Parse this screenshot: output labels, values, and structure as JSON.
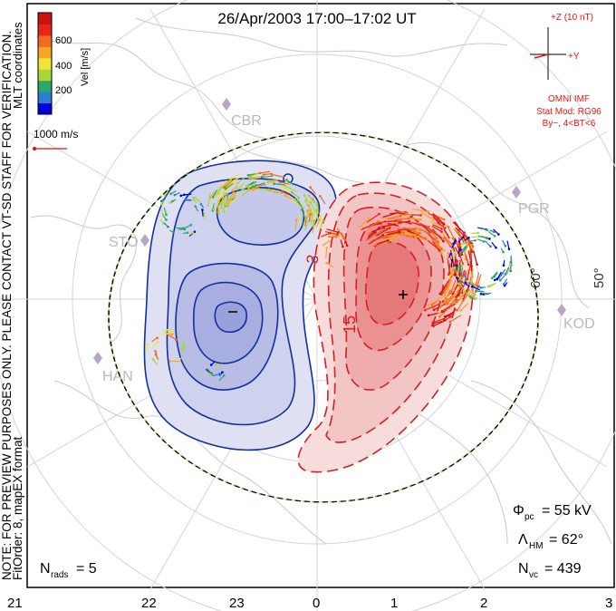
{
  "title": "26/Apr/2003 17:00–17:02 UT",
  "side_note": "NOTE: FOR PREVIEW PURPOSES ONLY. PLEASE CONTACT VT-SD STAFF FOR VERIFICATION.",
  "fit_order": "FitOrder: 8, mapEX format",
  "coord_label": "MLT coordinates",
  "colorbar": {
    "label": "Vel [m/s]",
    "ticks": [
      "600",
      "400",
      "200"
    ],
    "colors": [
      "#0000dd",
      "#2b7bd8",
      "#2aa76a",
      "#a8d838",
      "#f3e23a",
      "#f5a623",
      "#ef6b1f",
      "#e8251b",
      "#cc1111"
    ]
  },
  "scale": {
    "label": "1000 m/s",
    "color": "#d11"
  },
  "imf": {
    "z_label": "+Z (10 nT)",
    "y_label": "+Y",
    "source": "OMNI IMF",
    "model_line1": "Stat Mod: RG96",
    "model_line2": "By−, 4<BT<6",
    "color": "#e11"
  },
  "stations": [
    "CBR",
    "STO",
    "PGR",
    "KOD",
    "HAN"
  ],
  "lat_labels": [
    "60°",
    "50°"
  ],
  "contour_labels": [
    "3",
    "15"
  ],
  "mlt_ticks": [
    "21",
    "22",
    "23",
    "0",
    "1",
    "2",
    "3"
  ],
  "stats": {
    "phi_pc": {
      "sym": "Φ",
      "sub": "pc",
      "value": "= 55 kV"
    },
    "lambda_hm": {
      "sym": "Λ",
      "sub": "HM",
      "value": "= 62°"
    },
    "n_vc": {
      "sym": "N",
      "sub": "vc",
      "value": "= 439"
    },
    "n_rads": {
      "sym": "N",
      "sub": "rads",
      "value": "= 5"
    }
  },
  "colors": {
    "positive": "#d42020",
    "negative": "#1030a0",
    "pos_fill": "#f2a0a0",
    "neg_fill": "#9fa6e0"
  }
}
